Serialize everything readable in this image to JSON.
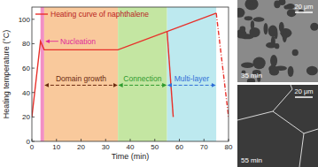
{
  "chart_data": {
    "type": "line",
    "x_label": "Time (min)",
    "y_label": "Heating temperature (°C)",
    "xlim": [
      0,
      80
    ],
    "xticks": [
      0,
      10,
      20,
      30,
      40,
      50,
      60,
      70,
      80
    ],
    "ylim": [
      0,
      110
    ],
    "yticks": [
      0,
      20,
      40,
      60,
      80,
      100
    ],
    "legend": "top-left",
    "series": [
      {
        "name": "Heating curve of naphthalene",
        "color": "#e8302a",
        "line_style": "solid",
        "x": [
          0,
          3.5,
          5,
          35,
          75
        ],
        "values": [
          20,
          82,
          75,
          75,
          105
        ]
      },
      {
        "color": "#e8302a",
        "line_style": "solid",
        "x": [
          55,
          57.5
        ],
        "values": [
          90,
          20
        ]
      },
      {
        "color": "#e8302a",
        "line_style": "dashdot",
        "x": [
          75,
          80
        ],
        "values": [
          105,
          20
        ]
      }
    ],
    "regions": [
      {
        "label": "Nucleation",
        "start": 3.5,
        "end": 5,
        "color": "#f28fc4",
        "text_color": "#e0289a"
      },
      {
        "label": "Domain growth",
        "start": 5,
        "end": 35,
        "color": "#f9c99c",
        "text_color": "#6b2a10"
      },
      {
        "label": "Connection",
        "start": 35,
        "end": 55,
        "color": "#c4e6a2",
        "text_color": "#2e9a2e"
      },
      {
        "label": "Multi-layer",
        "start": 55,
        "end": 75,
        "color": "#bde9ef",
        "text_color": "#2f6fd6"
      }
    ]
  },
  "panels": [
    {
      "time_label": "35 min",
      "scale_label": "20 μm"
    },
    {
      "time_label": "55 min",
      "scale_label": "20 μm"
    }
  ]
}
